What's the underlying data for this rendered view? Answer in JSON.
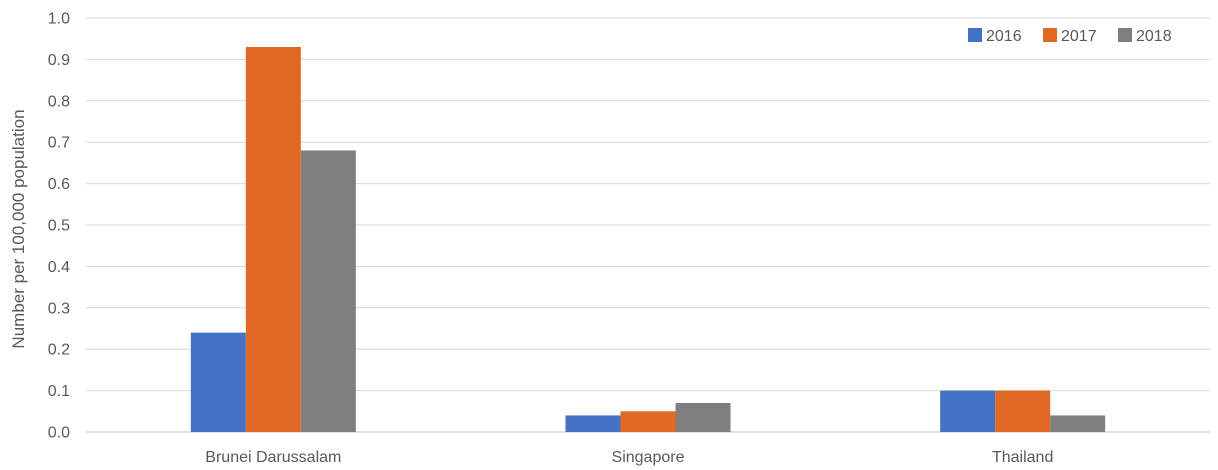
{
  "chart_data": {
    "type": "bar",
    "title": "",
    "xlabel": "",
    "ylabel": "Number per 100,000 population",
    "ylim": [
      0,
      1.0
    ],
    "y_ticks": [
      "0.0",
      "0.1",
      "0.2",
      "0.3",
      "0.4",
      "0.5",
      "0.6",
      "0.7",
      "0.8",
      "0.9",
      "1.0"
    ],
    "categories": [
      "Brunei Darussalam",
      "Singapore",
      "Thailand"
    ],
    "series": [
      {
        "name": "2016",
        "color": "#4472c4",
        "values": [
          0.24,
          0.04,
          0.1
        ]
      },
      {
        "name": "2017",
        "color": "#e06a25",
        "values": [
          0.93,
          0.05,
          0.1
        ]
      },
      {
        "name": "2018",
        "color": "#7f7f7f",
        "values": [
          0.68,
          0.07,
          0.04
        ]
      }
    ],
    "grid": true,
    "legend_position": "top-right"
  }
}
